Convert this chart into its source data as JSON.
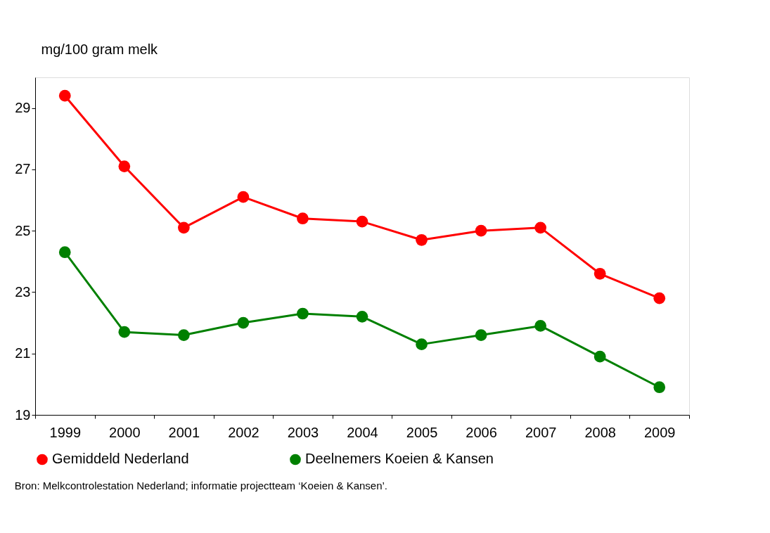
{
  "chart_data": {
    "type": "line",
    "ylabel": "mg/100 gram melk",
    "categories": [
      "1999",
      "2000",
      "2001",
      "2002",
      "2003",
      "2004",
      "2005",
      "2006",
      "2007",
      "2008",
      "2009"
    ],
    "series": [
      {
        "name": "Gemiddeld Nederland",
        "color": "#ff0000",
        "values": [
          29.4,
          27.1,
          25.1,
          26.1,
          25.4,
          25.3,
          24.7,
          25.0,
          25.1,
          23.6,
          22.8
        ]
      },
      {
        "name": "Deelnemers Koeien & Kansen",
        "color": "#008000",
        "values": [
          24.3,
          21.7,
          21.6,
          22.0,
          22.3,
          22.2,
          21.3,
          21.6,
          21.9,
          20.9,
          19.9
        ]
      }
    ],
    "ylim": [
      19,
      30
    ],
    "yticks": [
      19,
      21,
      23,
      25,
      27,
      29
    ],
    "grid": false,
    "legend": "bottom",
    "marker": "circle",
    "line_style": "solid",
    "annotations": [
      "Bron: Melkcontrolestation Nederland; informatie projectteam ‘Koeien & Kansen’."
    ]
  }
}
